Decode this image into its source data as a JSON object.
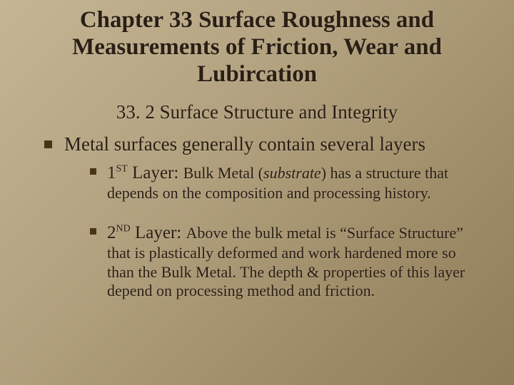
{
  "colors": {
    "background_gradient_start": "#c4b594",
    "background_gradient_end": "#8f7d59",
    "text_color": "#2a1f15",
    "bullet_color": "#4a3418"
  },
  "typography": {
    "title_fontsize": 33,
    "subtitle_fontsize": 27,
    "level1_fontsize": 27,
    "level2_fontsize": 22,
    "font_family": "Times New Roman"
  },
  "title": "Chapter 33 Surface Roughness and Measurements of Friction, Wear and Lubircation",
  "subtitle": "33. 2 Surface Structure and Integrity",
  "level1_text": "Metal surfaces generally contain several layers",
  "layer1": {
    "ordinal": "1",
    "suffix": "ST",
    "label": " Layer: ",
    "lead": "Bulk Metal (",
    "italic": "substrate",
    "tail": ") has a structure that depends on the composition and processing history."
  },
  "layer2": {
    "ordinal": "2",
    "suffix": "ND",
    "label": " Layer: ",
    "body": "Above the bulk metal is “Surface Structure” that is plastically deformed and work hardened more so than the Bulk Metal.  The depth & properties of this layer depend on processing method and friction."
  }
}
